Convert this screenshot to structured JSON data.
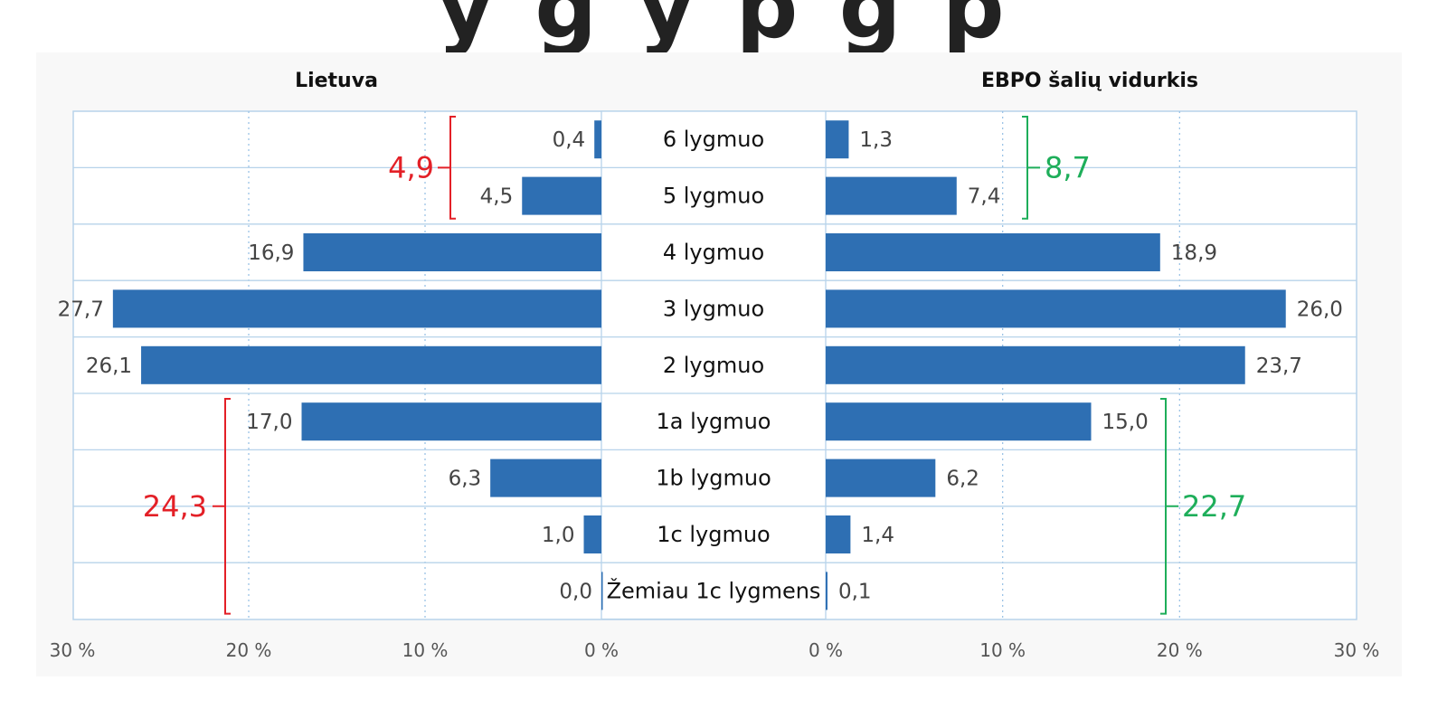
{
  "chart_data": {
    "type": "bar",
    "orientation": "horizontal",
    "layout": "back-to-back",
    "panels": [
      {
        "name": "Lietuva",
        "xlim": [
          0,
          30
        ],
        "ticks": [
          "30 %",
          "20 %",
          "10 %",
          "0 %"
        ],
        "grid": true,
        "values": [
          0.4,
          4.5,
          16.9,
          27.7,
          26.1,
          17.0,
          6.3,
          1.0,
          0.0
        ],
        "labels": [
          "0,4",
          "4,5",
          "16,9",
          "27,7",
          "26,1",
          "17,0",
          "6,3",
          "1,0",
          "0,0"
        ],
        "brackets": [
          {
            "label": "4,9",
            "from": 0,
            "to": 1,
            "color": "#e32027"
          },
          {
            "label": "24,3",
            "from": 5,
            "to": 8,
            "color": "#e32027"
          }
        ]
      },
      {
        "name": "EBPO šalių vidurkis",
        "xlim": [
          0,
          30
        ],
        "ticks": [
          "0 %",
          "10 %",
          "20 %",
          "30 %"
        ],
        "grid": true,
        "values": [
          1.3,
          7.4,
          18.9,
          26.0,
          23.7,
          15.0,
          6.2,
          1.4,
          0.1
        ],
        "labels": [
          "1,3",
          "7,4",
          "18,9",
          "26,0",
          "23,7",
          "15,0",
          "6,2",
          "1,4",
          "0,1"
        ],
        "brackets": [
          {
            "label": "8,7",
            "from": 0,
            "to": 1,
            "color": "#1eae5a"
          },
          {
            "label": "22,7",
            "from": 5,
            "to": 8,
            "color": "#1eae5a"
          }
        ]
      }
    ],
    "categories": [
      "6 lygmuo",
      "5 lygmuo",
      "4 lygmuo",
      "3 lygmuo",
      "2 lygmuo",
      "1a lygmuo",
      "1b lygmuo",
      "1c lygmuo",
      "Žemiau 1c lygmens"
    ],
    "bar_color": "#2e6fb3"
  }
}
